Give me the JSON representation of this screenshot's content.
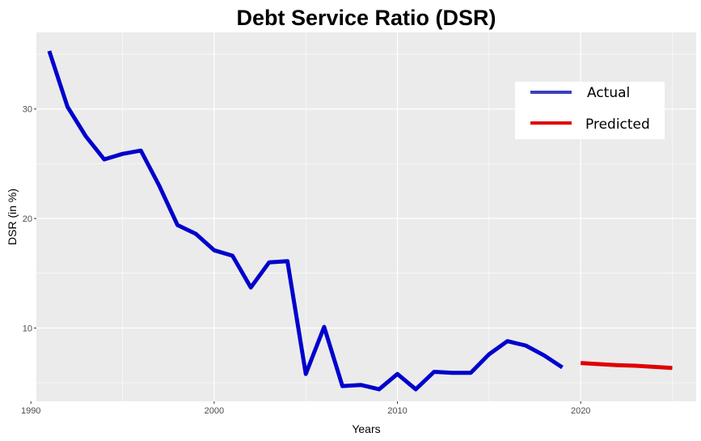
{
  "chart_data": {
    "type": "line",
    "title": "Debt Service Ratio (DSR)",
    "xlabel": "Years",
    "ylabel": "DSR (in %)",
    "xlim": [
      1990.3,
      2026.3
    ],
    "ylim": [
      3.3,
      37.0
    ],
    "x_ticks": [
      1990,
      2000,
      2010,
      2020
    ],
    "y_ticks": [
      10,
      20,
      30
    ],
    "grid": true,
    "legend_position": "top-right",
    "series": [
      {
        "name": "Actual",
        "color": "#0000cd",
        "legend_color": "#3c40c0",
        "x": [
          1991,
          1992,
          1993,
          1994,
          1995,
          1996,
          1997,
          1998,
          1999,
          2000,
          2001,
          2002,
          2003,
          2004,
          2005,
          2006,
          2007,
          2008,
          2009,
          2010,
          2011,
          2012,
          2013,
          2014,
          2015,
          2016,
          2017,
          2018,
          2019
        ],
        "values": [
          35.3,
          30.2,
          27.5,
          25.4,
          25.9,
          26.2,
          23.0,
          19.4,
          18.6,
          17.1,
          16.6,
          13.7,
          16.0,
          16.1,
          5.8,
          10.1,
          4.7,
          4.8,
          4.4,
          5.8,
          4.4,
          6.0,
          5.9,
          5.9,
          7.6,
          8.8,
          8.4,
          7.5,
          6.4
        ]
      },
      {
        "name": "Predicted",
        "color": "#e00000",
        "legend_color": "#e00000",
        "x": [
          2020,
          2021,
          2022,
          2023,
          2024,
          2025
        ],
        "values": [
          6.8,
          6.7,
          6.6,
          6.55,
          6.45,
          6.35
        ]
      }
    ]
  }
}
